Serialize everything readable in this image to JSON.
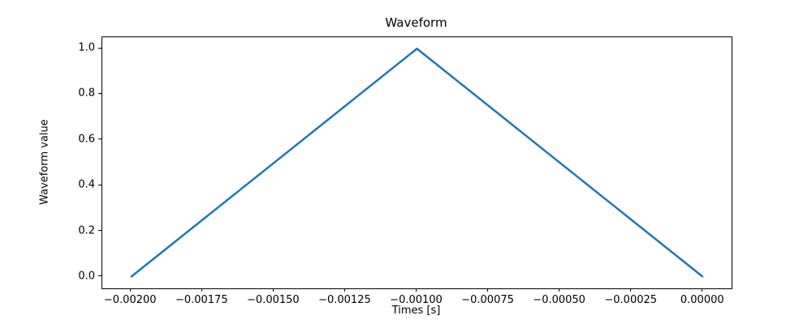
{
  "chart_data": {
    "type": "line",
    "title": "Waveform",
    "xlabel": "Times [s]",
    "ylabel": "Waveform value",
    "grid": false,
    "legend": null,
    "line_color": "#1f77b4",
    "line_width": 2.5,
    "xlim": [
      -0.0021,
      0.0001
    ],
    "ylim": [
      -0.05,
      1.05
    ],
    "series": [
      {
        "name": "waveform",
        "x": [
          -0.002,
          -0.001,
          0.0
        ],
        "y": [
          0.0,
          1.0,
          0.0
        ]
      }
    ],
    "xticks": {
      "values": [
        -0.002,
        -0.00175,
        -0.0015,
        -0.00125,
        -0.001,
        -0.00075,
        -0.0005,
        -0.00025,
        0.0
      ],
      "labels": [
        "−0.00200",
        "−0.00175",
        "−0.00150",
        "−0.00125",
        "−0.00100",
        "−0.00075",
        "−0.00050",
        "−0.00025",
        "0.00000"
      ]
    },
    "yticks": {
      "values": [
        0.0,
        0.2,
        0.4,
        0.6,
        0.8,
        1.0
      ],
      "labels": [
        "0.0",
        "0.2",
        "0.4",
        "0.6",
        "0.8",
        "1.0"
      ]
    }
  }
}
